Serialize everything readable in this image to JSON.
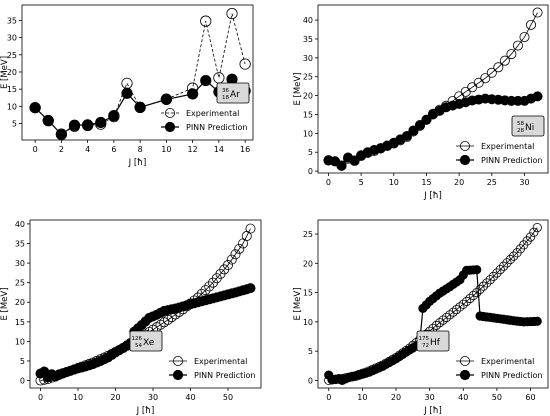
{
  "chart_data": [
    {
      "type": "line",
      "nucleus": {
        "mass": "36",
        "charge": "18",
        "symbol": "Ar"
      },
      "xlabel": "J [ħ]",
      "ylabel": "E [MeV]",
      "xlim": [
        -1,
        16.6
      ],
      "ylim": [
        0.2,
        39.5
      ],
      "xticks": [
        0,
        2,
        4,
        6,
        8,
        10,
        12,
        14,
        16
      ],
      "yticks": [
        5,
        10,
        15,
        20,
        25,
        30,
        35
      ],
      "legend": [
        "Experimental",
        "PINN Prediction"
      ],
      "legend_position": "lower right",
      "label_position": "right",
      "series": [
        {
          "name": "Experimental",
          "style": "dashed-open",
          "x": [
            0,
            1,
            2,
            3,
            4,
            5,
            6,
            7,
            8,
            10,
            12,
            13,
            14,
            15,
            16
          ],
          "y": [
            9.6,
            5.8,
            1.9,
            4.2,
            4.4,
            4.8,
            7.0,
            16.7,
            9.7,
            12.1,
            15.3,
            34.8,
            18.3,
            37.0,
            22.3
          ]
        },
        {
          "name": "PINN Prediction",
          "style": "solid-filled",
          "x": [
            0,
            1,
            2,
            3,
            4,
            5,
            6,
            7,
            8,
            10,
            12,
            13,
            14,
            15,
            16
          ],
          "y": [
            9.6,
            5.9,
            1.8,
            4.5,
            4.6,
            5.3,
            7.3,
            13.8,
            9.7,
            12.0,
            13.6,
            17.5,
            14.2,
            17.9,
            14.5
          ]
        }
      ]
    },
    {
      "type": "line",
      "nucleus": {
        "mass": "58",
        "charge": "28",
        "symbol": "Ni"
      },
      "xlabel": "J [ħ]",
      "ylabel": "E [MeV]",
      "xlim": [
        -1.6,
        33.6
      ],
      "ylim": [
        -0.5,
        44
      ],
      "xticks": [
        0,
        5,
        10,
        15,
        20,
        25,
        30
      ],
      "yticks": [
        0,
        5,
        10,
        15,
        20,
        25,
        30,
        35,
        40
      ],
      "legend": [
        "Experimental",
        "PINN Prediction"
      ],
      "legend_position": "lower right",
      "label_position": "right",
      "series": [
        {
          "name": "Experimental",
          "style": "solid-open",
          "generator": "ni_exp",
          "x": [],
          "y": []
        },
        {
          "name": "PINN Prediction",
          "style": "solid-filled",
          "generator": "ni_pinn",
          "x": [],
          "y": []
        }
      ],
      "keypoints": {
        "exp": [
          [
            0,
            2.8
          ],
          [
            1,
            2.6
          ],
          [
            2,
            1.5
          ],
          [
            3,
            3.3
          ],
          [
            4,
            2.8
          ],
          [
            5,
            4.0
          ],
          [
            6,
            4.8
          ],
          [
            7,
            5.3
          ],
          [
            8,
            6.0
          ],
          [
            10,
            7.3
          ],
          [
            12,
            9.0
          ],
          [
            14,
            12.0
          ],
          [
            16,
            15.2
          ],
          [
            18,
            17.3
          ],
          [
            20,
            19.8
          ],
          [
            22,
            22.2
          ],
          [
            24,
            24.6
          ],
          [
            26,
            27.5
          ],
          [
            28,
            31.0
          ],
          [
            30,
            35.5
          ],
          [
            32,
            42.0
          ]
        ],
        "pinn": [
          [
            0,
            2.9
          ],
          [
            1,
            2.6
          ],
          [
            2,
            1.4
          ],
          [
            3,
            3.6
          ],
          [
            4,
            2.7
          ],
          [
            5,
            4.2
          ],
          [
            6,
            5.0
          ],
          [
            7,
            5.6
          ],
          [
            8,
            6.1
          ],
          [
            10,
            7.5
          ],
          [
            12,
            9.3
          ],
          [
            14,
            12.2
          ],
          [
            16,
            15.0
          ],
          [
            18,
            16.9
          ],
          [
            20,
            17.8
          ],
          [
            22,
            18.7
          ],
          [
            24,
            19.2
          ],
          [
            26,
            18.9
          ],
          [
            28,
            18.6
          ],
          [
            30,
            18.6
          ],
          [
            32,
            19.8
          ]
        ]
      }
    },
    {
      "type": "line",
      "nucleus": {
        "mass": "126",
        "charge": "54",
        "symbol": "Xe"
      },
      "xlabel": "J [ħ]",
      "ylabel": "E [MeV]",
      "xlim": [
        -2.8,
        58.8
      ],
      "ylim": [
        -1.9,
        41
      ],
      "xticks": [
        0,
        10,
        20,
        30,
        40,
        50
      ],
      "yticks": [
        0,
        5,
        10,
        15,
        20,
        25,
        30,
        35,
        40
      ],
      "legend": [
        "Experimental",
        "PINN Prediction"
      ],
      "legend_position": "lower right",
      "label_position": "left",
      "series": [
        {
          "name": "Experimental",
          "style": "solid-open",
          "generator": "xe_exp",
          "x": [],
          "y": []
        },
        {
          "name": "PINN Prediction",
          "style": "solid-filled",
          "generator": "xe_pinn",
          "x": [],
          "y": []
        }
      ],
      "keypoints": {
        "exp": [
          [
            0,
            0.0
          ],
          [
            2,
            0.4
          ],
          [
            4,
            1.1
          ],
          [
            6,
            1.8
          ],
          [
            8,
            2.5
          ],
          [
            10,
            3.2
          ],
          [
            14,
            4.6
          ],
          [
            18,
            6.3
          ],
          [
            22,
            8.3
          ],
          [
            26,
            10.6
          ],
          [
            30,
            13.0
          ],
          [
            34,
            15.5
          ],
          [
            38,
            18.2
          ],
          [
            42,
            21.2
          ],
          [
            46,
            25.0
          ],
          [
            50,
            29.5
          ],
          [
            54,
            35.0
          ],
          [
            56,
            38.8
          ]
        ],
        "pinn": [
          [
            0,
            1.8
          ],
          [
            1,
            2.3
          ],
          [
            2,
            0.8
          ],
          [
            3,
            1.6
          ],
          [
            4,
            1.0
          ],
          [
            5,
            1.6
          ],
          [
            6,
            1.9
          ],
          [
            8,
            2.5
          ],
          [
            10,
            3.1
          ],
          [
            12,
            3.6
          ],
          [
            14,
            4.2
          ],
          [
            16,
            5.0
          ],
          [
            18,
            5.9
          ],
          [
            20,
            7.2
          ],
          [
            22,
            8.3
          ],
          [
            24,
            9.6
          ],
          [
            25,
            12.5
          ],
          [
            27,
            14.2
          ],
          [
            29,
            16.0
          ],
          [
            31,
            16.8
          ],
          [
            33,
            17.8
          ],
          [
            36,
            18.4
          ],
          [
            40,
            19.5
          ],
          [
            44,
            20.5
          ],
          [
            48,
            21.5
          ],
          [
            52,
            22.5
          ],
          [
            56,
            23.6
          ]
        ]
      }
    },
    {
      "type": "line",
      "nucleus": {
        "mass": "175",
        "charge": "72",
        "symbol": "Hf"
      },
      "xlabel": "J [ħ]",
      "ylabel": "E [MeV]",
      "xlim": [
        -3.2,
        65.2
      ],
      "ylim": [
        -1.3,
        27.4
      ],
      "xticks": [
        0,
        10,
        20,
        30,
        40,
        50,
        60
      ],
      "yticks": [
        0,
        5,
        10,
        15,
        20,
        25
      ],
      "legend": [
        "Experimental",
        "PINN Prediction"
      ],
      "legend_position": "lower right",
      "label_position": "left",
      "series": [
        {
          "name": "Experimental",
          "style": "solid-open",
          "generator": "hf_exp",
          "x": [],
          "y": []
        },
        {
          "name": "PINN Prediction",
          "style": "solid-filled",
          "generator": "hf_pinn",
          "x": [],
          "y": []
        }
      ],
      "keypoints": {
        "exp": [
          [
            0,
            0.0
          ],
          [
            4,
            0.3
          ],
          [
            8,
            0.8
          ],
          [
            12,
            1.6
          ],
          [
            16,
            2.6
          ],
          [
            20,
            3.9
          ],
          [
            24,
            5.5
          ],
          [
            28,
            7.4
          ],
          [
            32,
            9.4
          ],
          [
            36,
            11.2
          ],
          [
            40,
            13.0
          ],
          [
            44,
            15.0
          ],
          [
            48,
            17.2
          ],
          [
            52,
            19.5
          ],
          [
            56,
            21.8
          ],
          [
            60,
            24.5
          ],
          [
            62,
            26.1
          ]
        ],
        "pinn": [
          [
            0,
            0.9
          ],
          [
            1,
            0.1
          ],
          [
            2,
            0.2
          ],
          [
            3,
            0.3
          ],
          [
            4,
            0.0
          ],
          [
            6,
            0.5
          ],
          [
            8,
            0.7
          ],
          [
            12,
            1.4
          ],
          [
            16,
            2.4
          ],
          [
            20,
            3.7
          ],
          [
            24,
            5.2
          ],
          [
            27,
            6.2
          ],
          [
            28,
            12.3
          ],
          [
            30,
            13.5
          ],
          [
            33,
            14.9
          ],
          [
            36,
            16.0
          ],
          [
            39,
            17.2
          ],
          [
            41,
            18.8
          ],
          [
            44,
            18.9
          ],
          [
            45,
            11.0
          ],
          [
            50,
            10.6
          ],
          [
            55,
            10.2
          ],
          [
            58,
            10.0
          ],
          [
            62,
            10.1
          ]
        ]
      }
    }
  ]
}
